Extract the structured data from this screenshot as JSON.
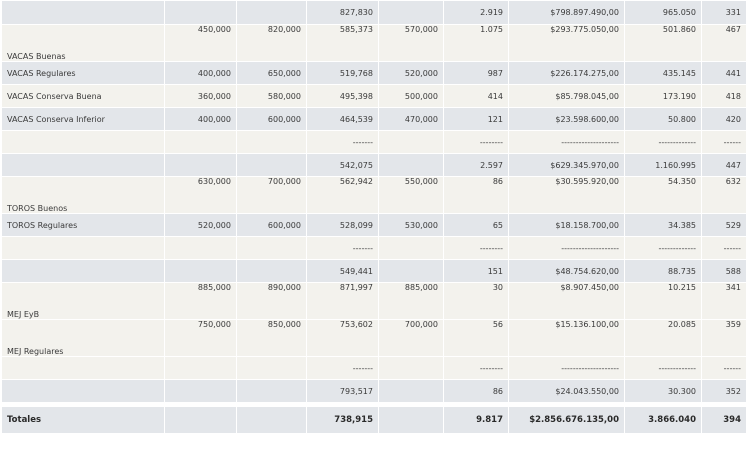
{
  "rows": [
    {
      "label": "",
      "c1": "",
      "c2": "",
      "c3": "827,830",
      "c4": "",
      "c5": "2.919",
      "c6": "$798.897.490,00",
      "c7": "965.050",
      "c8": "331"
    },
    {
      "label": "VACAS Buenas",
      "c1": "450,000",
      "c2": "820,000",
      "c3": "585,373",
      "c4": "570,000",
      "c5": "1.075",
      "c6": "$293.775.050,00",
      "c7": "501.860",
      "c8": "467"
    },
    {
      "label": "VACAS Regulares",
      "c1": "400,000",
      "c2": "650,000",
      "c3": "519,768",
      "c4": "520,000",
      "c5": "987",
      "c6": "$226.174.275,00",
      "c7": "435.145",
      "c8": "441"
    },
    {
      "label": "VACAS Conserva Buena",
      "c1": "360,000",
      "c2": "580,000",
      "c3": "495,398",
      "c4": "500,000",
      "c5": "414",
      "c6": "$85.798.045,00",
      "c7": "173.190",
      "c8": "418"
    },
    {
      "label": "VACAS Conserva Inferior",
      "c1": "400,000",
      "c2": "600,000",
      "c3": "464,539",
      "c4": "470,000",
      "c5": "121",
      "c6": "$23.598.600,00",
      "c7": "50.800",
      "c8": "420"
    },
    {
      "label": "",
      "c1": "",
      "c2": "",
      "c3": "-------",
      "c4": "",
      "c5": "--------",
      "c6": "--------------------",
      "c7": "-------------",
      "c8": "------"
    },
    {
      "label": "",
      "c1": "",
      "c2": "",
      "c3": "542,075",
      "c4": "",
      "c5": "2.597",
      "c6": "$629.345.970,00",
      "c7": "1.160.995",
      "c8": "447"
    },
    {
      "label": "TOROS Buenos",
      "c1": "630,000",
      "c2": "700,000",
      "c3": "562,942",
      "c4": "550,000",
      "c5": "86",
      "c6": "$30.595.920,00",
      "c7": "54.350",
      "c8": "632"
    },
    {
      "label": "TOROS Regulares",
      "c1": "520,000",
      "c2": "600,000",
      "c3": "528,099",
      "c4": "530,000",
      "c5": "65",
      "c6": "$18.158.700,00",
      "c7": "34.385",
      "c8": "529"
    },
    {
      "label": "",
      "c1": "",
      "c2": "",
      "c3": "-------",
      "c4": "",
      "c5": "--------",
      "c6": "--------------------",
      "c7": "-------------",
      "c8": "------"
    },
    {
      "label": "",
      "c1": "",
      "c2": "",
      "c3": "549,441",
      "c4": "",
      "c5": "151",
      "c6": "$48.754.620,00",
      "c7": "88.735",
      "c8": "588"
    },
    {
      "label": "MEJ EyB",
      "c1": "885,000",
      "c2": "890,000",
      "c3": "871,997",
      "c4": "885,000",
      "c5": "30",
      "c6": "$8.907.450,00",
      "c7": "10.215",
      "c8": "341"
    },
    {
      "label": "MEJ Regulares",
      "c1": "750,000",
      "c2": "850,000",
      "c3": "753,602",
      "c4": "700,000",
      "c5": "56",
      "c6": "$15.136.100,00",
      "c7": "20.085",
      "c8": "359"
    },
    {
      "label": "",
      "c1": "",
      "c2": "",
      "c3": "-------",
      "c4": "",
      "c5": "--------",
      "c6": "--------------------",
      "c7": "-------------",
      "c8": "------"
    },
    {
      "label": "",
      "c1": "",
      "c2": "",
      "c3": "793,517",
      "c4": "",
      "c5": "86",
      "c6": "$24.043.550,00",
      "c7": "30.300",
      "c8": "352"
    }
  ],
  "totals": {
    "label": "Totales",
    "c1": "",
    "c2": "",
    "c3": "738,915",
    "c4": "",
    "c5": "9.817",
    "c6": "$2.856.676.135,00",
    "c7": "3.866.040",
    "c8": "394"
  }
}
